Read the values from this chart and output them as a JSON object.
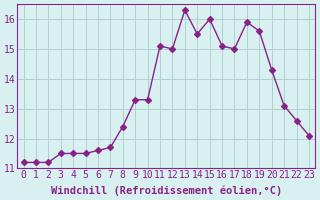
{
  "x": [
    0,
    1,
    2,
    3,
    4,
    5,
    6,
    7,
    8,
    9,
    10,
    11,
    12,
    13,
    14,
    15,
    16,
    17,
    18,
    19,
    20,
    21,
    22,
    23
  ],
  "y": [
    11.2,
    11.2,
    11.2,
    11.5,
    11.5,
    11.5,
    11.6,
    11.7,
    12.4,
    13.3,
    13.3,
    15.1,
    15.0,
    16.3,
    15.5,
    16.0,
    15.1,
    15.0,
    15.9,
    15.6,
    14.3,
    13.1,
    12.6,
    12.1
  ],
  "line_color": "#882288",
  "marker": "D",
  "marker_size": 3,
  "bg_color": "#d8f0f0",
  "grid_color": "#b0d0d0",
  "xlabel": "Windchill (Refroidissement éolien,°C)",
  "xlabel_fontsize": 7.5,
  "tick_label_fontsize": 7,
  "ylim": [
    11.0,
    16.5
  ],
  "yticks": [
    11,
    12,
    13,
    14,
    15,
    16
  ],
  "xticks": [
    0,
    1,
    2,
    3,
    4,
    5,
    6,
    7,
    8,
    9,
    10,
    11,
    12,
    13,
    14,
    15,
    16,
    17,
    18,
    19,
    20,
    21,
    22,
    23
  ]
}
